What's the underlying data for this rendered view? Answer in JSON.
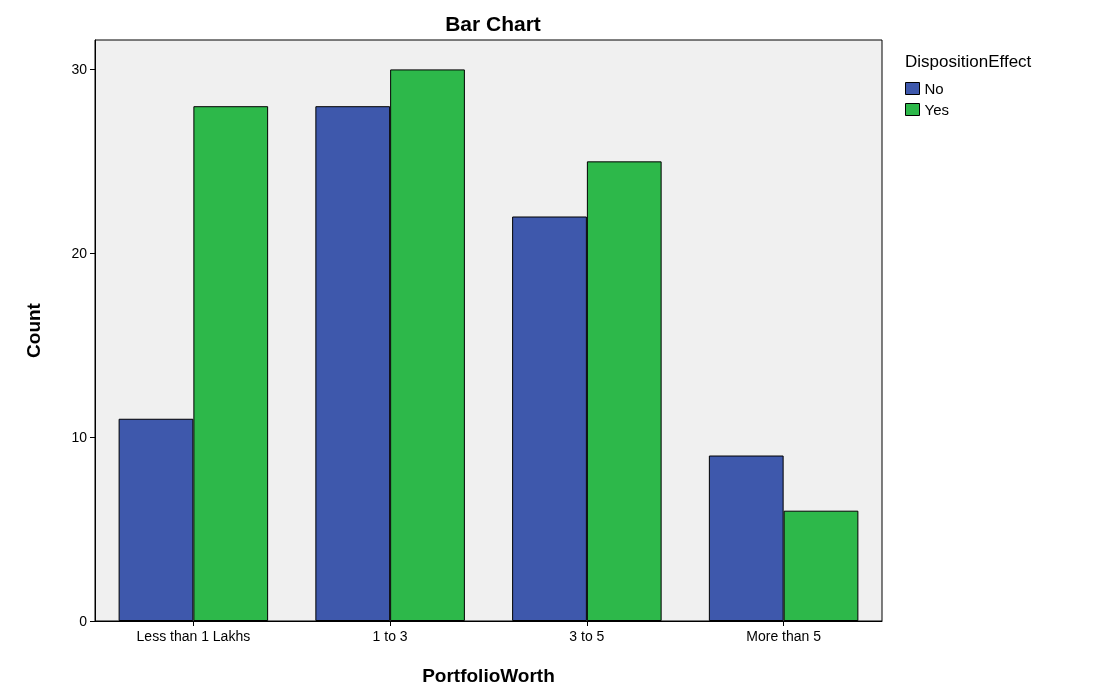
{
  "chart_data": {
    "type": "bar",
    "title": "Bar Chart",
    "xlabel": "PortfolioWorth",
    "ylabel": "Count",
    "legend_title": "DispositionEffect",
    "categories": [
      "Less than 1 Lakhs",
      "1 to 3",
      "3 to 5",
      "More than 5"
    ],
    "series": [
      {
        "name": "No",
        "color": "#3e58ac",
        "values": [
          11,
          28,
          22,
          9
        ]
      },
      {
        "name": "Yes",
        "color": "#2db84a",
        "values": [
          28,
          30,
          25,
          6
        ]
      }
    ],
    "ylim": [
      0,
      31.6
    ],
    "yticks": [
      0,
      10,
      20,
      30
    ],
    "grid": false,
    "legend": "top right"
  }
}
